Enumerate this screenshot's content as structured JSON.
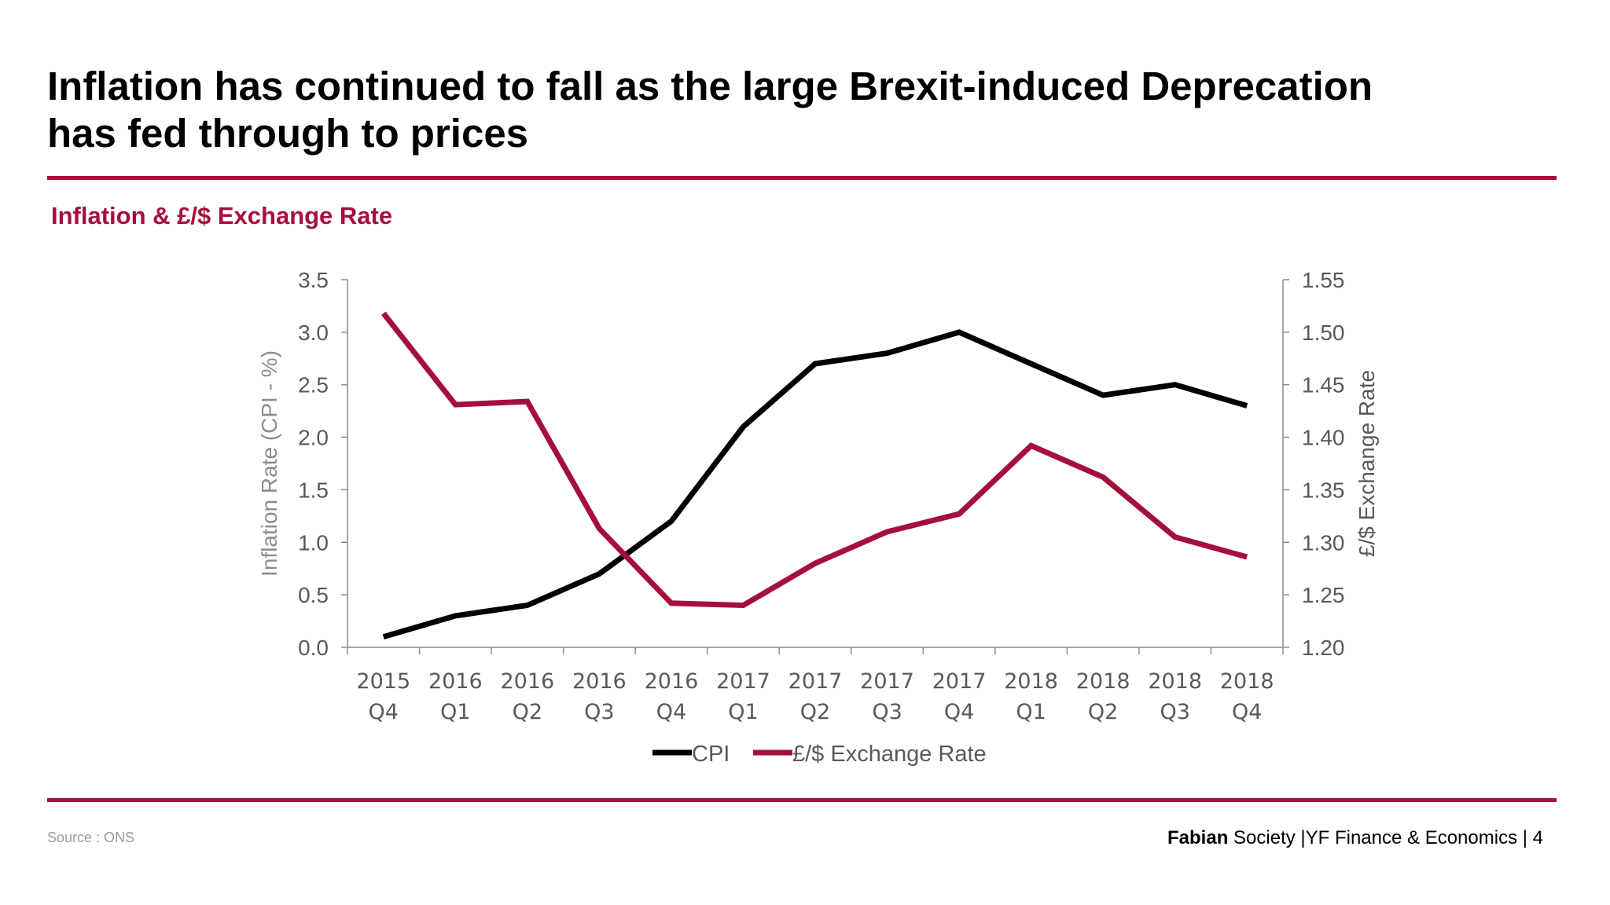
{
  "slide": {
    "title_line1": "Inflation has continued to fall as the large Brexit-induced Deprecation",
    "title_line2": "has fed through to prices",
    "subtitle": "Inflation & £/$ Exchange Rate",
    "source": "Source : ONS",
    "footer": {
      "brand": "Fabian",
      "text": " Society |YF Finance & Economics | ",
      "page": "4"
    },
    "colors": {
      "accent": "#a50f3c",
      "cpi": "#000000",
      "fx": "#a50f3c"
    }
  },
  "chart_data": {
    "type": "line",
    "title": "Inflation & £/$ Exchange Rate",
    "categories": [
      [
        "2015",
        "Q4"
      ],
      [
        "2016",
        "Q1"
      ],
      [
        "2016",
        "Q2"
      ],
      [
        "2016",
        "Q3"
      ],
      [
        "2016",
        "Q4"
      ],
      [
        "2017",
        "Q1"
      ],
      [
        "2017",
        "Q2"
      ],
      [
        "2017",
        "Q3"
      ],
      [
        "2017",
        "Q4"
      ],
      [
        "2018",
        "Q1"
      ],
      [
        "2018",
        "Q2"
      ],
      [
        "2018",
        "Q3"
      ],
      [
        "2018",
        "Q4"
      ]
    ],
    "series": [
      {
        "name": "CPI",
        "axis": "left",
        "values": [
          0.1,
          0.3,
          0.4,
          0.7,
          1.2,
          2.1,
          2.7,
          2.8,
          3.0,
          2.7,
          2.4,
          2.5,
          2.3
        ]
      },
      {
        "name": "£/$ Exchange Rate",
        "axis": "right",
        "values": [
          1.518,
          1.431,
          1.434,
          1.313,
          1.242,
          1.24,
          1.28,
          1.31,
          1.327,
          1.392,
          1.362,
          1.305,
          1.286
        ]
      }
    ],
    "y_left": {
      "label": "Inflation Rate (CPI - %)",
      "min": 0,
      "max": 3.5,
      "step": 0.5,
      "ticks": [
        "0.0",
        "0.5",
        "1.0",
        "1.5",
        "2.0",
        "2.5",
        "3.0",
        "3.5"
      ]
    },
    "y_right": {
      "label": "£/$ Exchange Rate",
      "min": 1.2,
      "max": 1.55,
      "step": 0.05,
      "ticks": [
        "1.20",
        "1.25",
        "1.30",
        "1.35",
        "1.40",
        "1.45",
        "1.50",
        "1.55"
      ]
    },
    "legend_position": "bottom",
    "grid": false
  }
}
